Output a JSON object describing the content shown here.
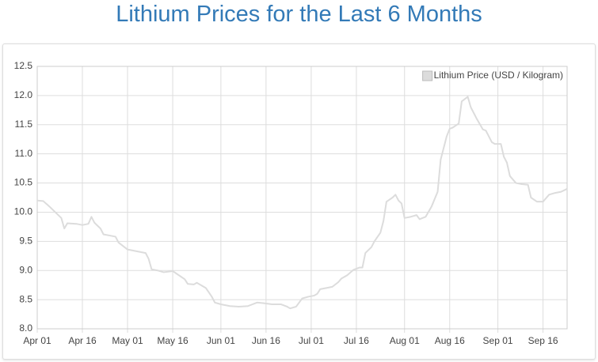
{
  "chart_data": {
    "type": "line",
    "title": "Lithium Prices for the Last 6 Months",
    "legend": "top-right",
    "grid": true,
    "x": [
      "Apr 01",
      "Apr 03",
      "Apr 05",
      "Apr 07",
      "Apr 09",
      "Apr 10",
      "Apr 11",
      "Apr 14",
      "Apr 16",
      "Apr 18",
      "Apr 19",
      "Apr 20",
      "Apr 22",
      "Apr 23",
      "Apr 25",
      "Apr 27",
      "Apr 28",
      "May 01",
      "May 03",
      "May 05",
      "May 07",
      "May 08",
      "May 09",
      "May 11",
      "May 13",
      "May 16",
      "May 18",
      "May 20",
      "May 21",
      "May 23",
      "May 24",
      "May 25",
      "May 27",
      "May 29",
      "May 30",
      "Jun 01",
      "Jun 04",
      "Jun 07",
      "Jun 10",
      "Jun 11",
      "Jun 13",
      "Jun 15",
      "Jun 18",
      "Jun 21",
      "Jun 23",
      "Jun 24",
      "Jun 26",
      "Jun 28",
      "Jun 30",
      "Jul 02",
      "Jul 03",
      "Jul 04",
      "Jul 07",
      "Jul 08",
      "Jul 10",
      "Jul 11",
      "Jul 13",
      "Jul 15",
      "Jul 17",
      "Jul 18",
      "Jul 19",
      "Jul 21",
      "Jul 22",
      "Jul 24",
      "Jul 25",
      "Jul 26",
      "Jul 28",
      "Jul 29",
      "Jul 30",
      "Jul 31",
      "Aug 01",
      "Aug 03",
      "Aug 05",
      "Aug 06",
      "Aug 08",
      "Aug 10",
      "Aug 12",
      "Aug 13",
      "Aug 15",
      "Aug 16",
      "Aug 17",
      "Aug 19",
      "Aug 20",
      "Aug 22",
      "Aug 23",
      "Aug 25",
      "Aug 27",
      "Aug 28",
      "Aug 30",
      "Aug 31",
      "Sep 02",
      "Sep 03",
      "Sep 04",
      "Sep 05",
      "Sep 07",
      "Sep 09",
      "Sep 11",
      "Sep 12",
      "Sep 14",
      "Sep 16",
      "Sep 18",
      "Sep 20",
      "Sep 22",
      "Sep 24"
    ],
    "series": [
      {
        "name": "Lithium Price (USD / Kilogram)",
        "color": "#dcdcdc",
        "values": [
          10.2,
          10.19,
          10.1,
          10.0,
          9.9,
          9.72,
          9.81,
          9.8,
          9.78,
          9.8,
          9.92,
          9.82,
          9.72,
          9.62,
          9.6,
          9.58,
          9.48,
          9.36,
          9.34,
          9.32,
          9.3,
          9.2,
          9.02,
          9.0,
          8.97,
          8.99,
          8.92,
          8.85,
          8.77,
          8.76,
          8.79,
          8.76,
          8.7,
          8.55,
          8.45,
          8.42,
          8.39,
          8.38,
          8.39,
          8.41,
          8.45,
          8.44,
          8.42,
          8.42,
          8.38,
          8.35,
          8.38,
          8.52,
          8.55,
          8.57,
          8.6,
          8.68,
          8.71,
          8.72,
          8.8,
          8.86,
          8.92,
          9.01,
          9.05,
          9.05,
          9.3,
          9.4,
          9.5,
          9.65,
          9.85,
          10.18,
          10.25,
          10.3,
          10.2,
          10.15,
          9.9,
          9.92,
          9.95,
          9.88,
          9.92,
          10.1,
          10.35,
          10.9,
          11.3,
          11.43,
          11.45,
          11.52,
          11.9,
          11.98,
          11.8,
          11.6,
          11.42,
          11.4,
          11.2,
          11.17,
          11.17,
          10.95,
          10.85,
          10.62,
          10.5,
          10.48,
          10.47,
          10.25,
          10.18,
          10.18,
          10.3,
          10.33,
          10.35,
          10.4
        ]
      }
    ],
    "xlim": [
      "Apr 01",
      "Sep 24"
    ],
    "xticks": [
      "Apr 01",
      "Apr 16",
      "May 01",
      "May 16",
      "Jun 01",
      "Jun 16",
      "Jul 01",
      "Jul 16",
      "Aug 01",
      "Aug 16",
      "Sep 01",
      "Sep 16"
    ],
    "ylim": [
      8.0,
      12.5
    ],
    "yticks": [
      {
        "value": 8.0,
        "label": "8.0"
      },
      8.5,
      {
        "value": 9.0,
        "label": "9.0"
      },
      9.5,
      {
        "value": 10.0,
        "label": "10.0"
      },
      10.5,
      {
        "value": 11.0,
        "label": "11.0"
      },
      11.5,
      {
        "value": 12.0,
        "label": "12.0"
      },
      12.5
    ]
  }
}
